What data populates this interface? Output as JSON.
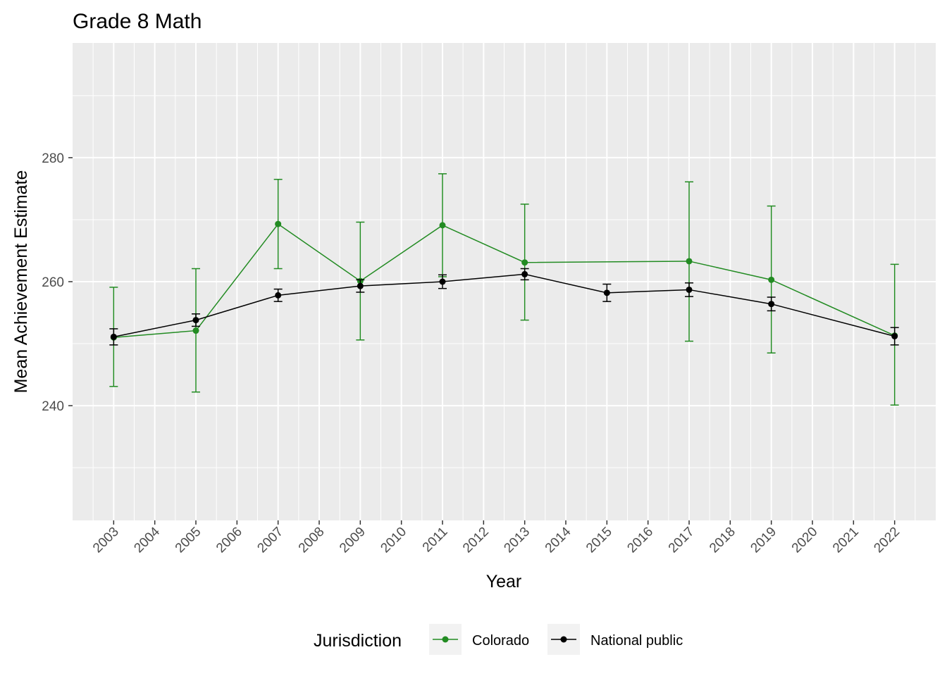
{
  "chart_data": {
    "type": "line",
    "title": "Grade 8 Math",
    "xlabel": "Year",
    "ylabel": "Mean Achievement Estimate",
    "x_ticks": [
      "2003",
      "2004",
      "2005",
      "2006",
      "2007",
      "2008",
      "2009",
      "2010",
      "2011",
      "2012",
      "2013",
      "2014",
      "2015",
      "2016",
      "2017",
      "2018",
      "2019",
      "2020",
      "2021",
      "2022"
    ],
    "y_ticks": [
      240,
      260,
      280
    ],
    "xlim": [
      2002,
      2023
    ],
    "ylim": [
      221.5,
      298.5
    ],
    "grid": true,
    "legend": {
      "title": "Jurisdiction",
      "position": "bottom",
      "entries": [
        "Colorado",
        "National public"
      ]
    },
    "series": [
      {
        "name": "Colorado",
        "color": "#228B22",
        "x": [
          2003,
          2005,
          2007,
          2009,
          2011,
          2013,
          2017,
          2019,
          2022
        ],
        "values": [
          251.0,
          252.1,
          269.3,
          260.1,
          269.1,
          263.1,
          263.3,
          260.3,
          251.3
        ],
        "lower": [
          243.1,
          242.2,
          262.1,
          250.6,
          260.8,
          253.8,
          250.4,
          248.5,
          240.1
        ],
        "upper": [
          259.1,
          262.1,
          276.5,
          269.6,
          277.4,
          272.5,
          276.1,
          272.2,
          262.8
        ]
      },
      {
        "name": "National public",
        "color": "#000000",
        "x": [
          2003,
          2005,
          2007,
          2009,
          2011,
          2013,
          2015,
          2017,
          2019,
          2022
        ],
        "values": [
          251.1,
          253.8,
          257.8,
          259.3,
          260.0,
          261.2,
          258.2,
          258.7,
          256.4,
          251.2
        ],
        "lower": [
          249.8,
          252.8,
          256.8,
          258.3,
          258.9,
          260.3,
          256.8,
          257.6,
          255.3,
          249.8
        ],
        "upper": [
          252.4,
          254.8,
          258.8,
          260.3,
          261.1,
          262.1,
          259.6,
          259.8,
          257.5,
          252.6
        ]
      }
    ]
  }
}
